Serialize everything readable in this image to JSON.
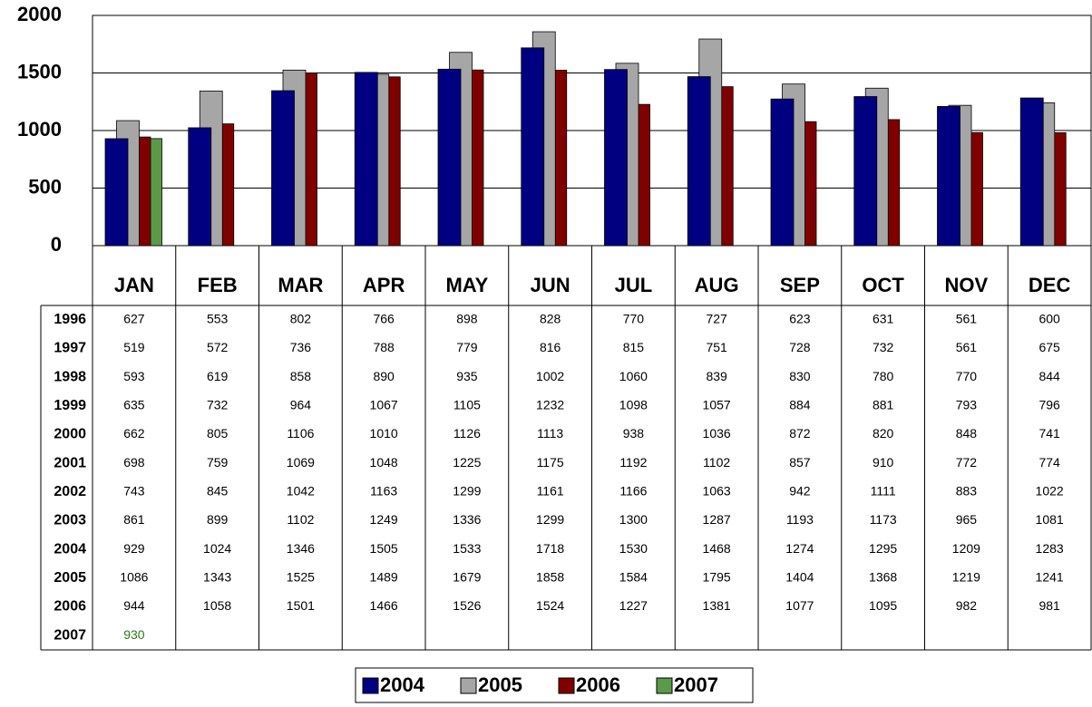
{
  "chart_data": {
    "type": "bar",
    "categories": [
      "JAN",
      "FEB",
      "MAR",
      "APR",
      "MAY",
      "JUN",
      "JUL",
      "AUG",
      "SEP",
      "OCT",
      "NOV",
      "DEC"
    ],
    "series": [
      {
        "name": "2004",
        "color": "#000080",
        "values": [
          929,
          1024,
          1346,
          1505,
          1533,
          1718,
          1530,
          1468,
          1274,
          1295,
          1209,
          1283
        ]
      },
      {
        "name": "2005",
        "color": "#a6a6a6",
        "values": [
          1086,
          1343,
          1525,
          1489,
          1679,
          1858,
          1584,
          1795,
          1404,
          1368,
          1219,
          1241
        ]
      },
      {
        "name": "2006",
        "color": "#800000",
        "values": [
          944,
          1058,
          1501,
          1466,
          1526,
          1524,
          1227,
          1381,
          1077,
          1095,
          982,
          981
        ]
      },
      {
        "name": "2007",
        "color": "#5b9a48",
        "values": [
          930,
          null,
          null,
          null,
          null,
          null,
          null,
          null,
          null,
          null,
          null,
          null
        ]
      }
    ],
    "ylim": [
      0,
      2000
    ],
    "yticks": [
      0,
      500,
      1000,
      1500,
      2000
    ],
    "grid": true,
    "legend": "bottom",
    "table": {
      "rows": [
        {
          "name": "1996",
          "values": [
            627,
            553,
            802,
            766,
            898,
            828,
            770,
            727,
            623,
            631,
            561,
            600
          ]
        },
        {
          "name": "1997",
          "values": [
            519,
            572,
            736,
            788,
            779,
            816,
            815,
            751,
            728,
            732,
            561,
            675
          ]
        },
        {
          "name": "1998",
          "values": [
            593,
            619,
            858,
            890,
            935,
            1002,
            1060,
            839,
            830,
            780,
            770,
            844
          ]
        },
        {
          "name": "1999",
          "values": [
            635,
            732,
            964,
            1067,
            1105,
            1232,
            1098,
            1057,
            884,
            881,
            793,
            796
          ]
        },
        {
          "name": "2000",
          "values": [
            662,
            805,
            1106,
            1010,
            1126,
            1113,
            938,
            1036,
            872,
            820,
            848,
            741
          ]
        },
        {
          "name": "2001",
          "values": [
            698,
            759,
            1069,
            1048,
            1225,
            1175,
            1192,
            1102,
            857,
            910,
            772,
            774
          ]
        },
        {
          "name": "2002",
          "values": [
            743,
            845,
            1042,
            1163,
            1299,
            1161,
            1166,
            1063,
            942,
            1111,
            883,
            1022
          ]
        },
        {
          "name": "2003",
          "values": [
            861,
            899,
            1102,
            1249,
            1336,
            1299,
            1300,
            1287,
            1193,
            1173,
            965,
            1081
          ]
        }
      ]
    }
  }
}
